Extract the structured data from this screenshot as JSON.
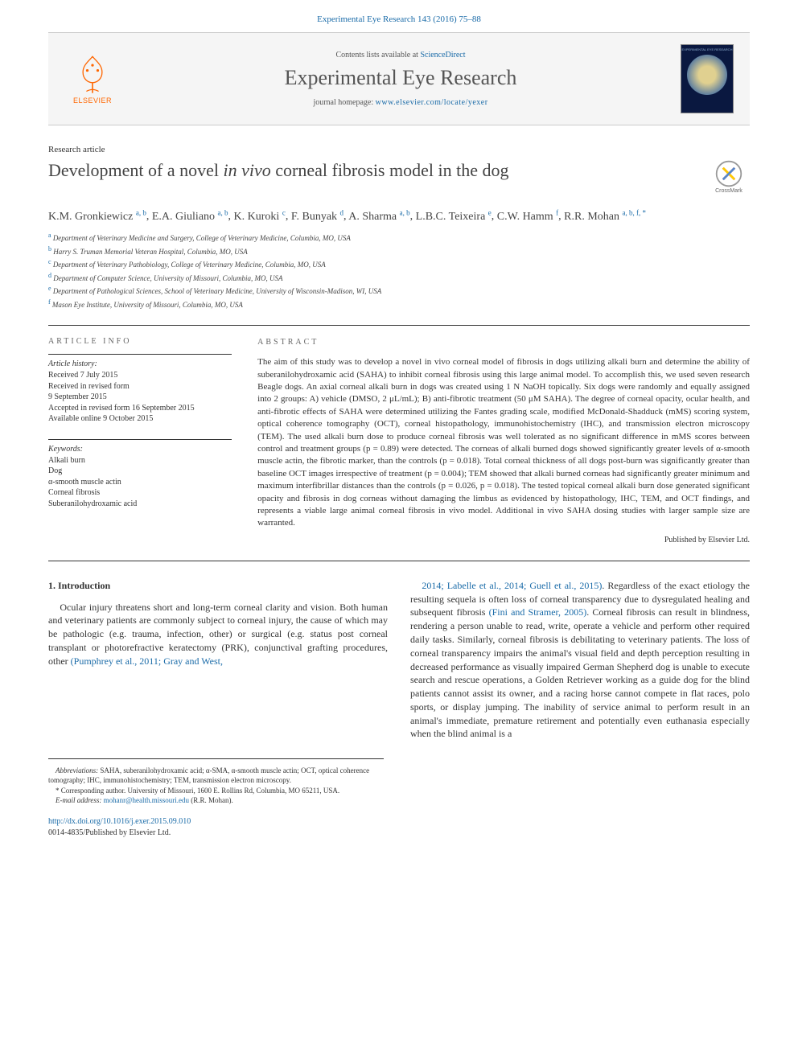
{
  "journal_ref": "Experimental Eye Research 143 (2016) 75–88",
  "masthead": {
    "elsevier": "ELSEVIER",
    "contents_prefix": "Contents lists available at ",
    "contents_link": "ScienceDirect",
    "journal_name": "Experimental Eye Research",
    "homepage_prefix": "journal homepage: ",
    "homepage_link": "www.elsevier.com/locate/yexer",
    "cover_text": "EXPERIMENTAL EYE RESEARCH"
  },
  "article_type": "Research article",
  "title_pre": "Development of a novel ",
  "title_em": "in vivo",
  "title_post": " corneal fibrosis model in the dog",
  "crossmark": "CrossMark",
  "authors": [
    {
      "name": "K.M. Gronkiewicz",
      "aff": "a, b"
    },
    {
      "name": "E.A. Giuliano",
      "aff": "a, b"
    },
    {
      "name": "K. Kuroki",
      "aff": "c"
    },
    {
      "name": "F. Bunyak",
      "aff": "d"
    },
    {
      "name": "A. Sharma",
      "aff": "a, b"
    },
    {
      "name": "L.B.C. Teixeira",
      "aff": "e"
    },
    {
      "name": "C.W. Hamm",
      "aff": "f"
    },
    {
      "name": "R.R. Mohan",
      "aff": "a, b, f, *"
    }
  ],
  "affiliations": [
    {
      "sup": "a",
      "text": "Department of Veterinary Medicine and Surgery, College of Veterinary Medicine, Columbia, MO, USA"
    },
    {
      "sup": "b",
      "text": "Harry S. Truman Memorial Veteran Hospital, Columbia, MO, USA"
    },
    {
      "sup": "c",
      "text": "Department of Veterinary Pathobiology, College of Veterinary Medicine, Columbia, MO, USA"
    },
    {
      "sup": "d",
      "text": "Department of Computer Science, University of Missouri, Columbia, MO, USA"
    },
    {
      "sup": "e",
      "text": "Department of Pathological Sciences, School of Veterinary Medicine, University of Wisconsin-Madison, WI, USA"
    },
    {
      "sup": "f",
      "text": "Mason Eye Institute, University of Missouri, Columbia, MO, USA"
    }
  ],
  "article_info": {
    "head": "ARTICLE INFO",
    "history_label": "Article history:",
    "history": [
      "Received 7 July 2015",
      "Received in revised form",
      "9 September 2015",
      "Accepted in revised form 16 September 2015",
      "Available online 9 October 2015"
    ],
    "keywords_label": "Keywords:",
    "keywords": [
      "Alkali burn",
      "Dog",
      "α-smooth muscle actin",
      "Corneal fibrosis",
      "Suberanilohydroxamic acid"
    ]
  },
  "abstract": {
    "head": "ABSTRACT",
    "text": "The aim of this study was to develop a novel in vivo corneal model of fibrosis in dogs utilizing alkali burn and determine the ability of suberanilohydroxamic acid (SAHA) to inhibit corneal fibrosis using this large animal model. To accomplish this, we used seven research Beagle dogs. An axial corneal alkali burn in dogs was created using 1 N NaOH topically. Six dogs were randomly and equally assigned into 2 groups: A) vehicle (DMSO, 2 μL/mL); B) anti-fibrotic treatment (50 μM SAHA). The degree of corneal opacity, ocular health, and anti-fibrotic effects of SAHA were determined utilizing the Fantes grading scale, modified McDonald-Shadduck (mMS) scoring system, optical coherence tomography (OCT), corneal histopathology, immunohistochemistry (IHC), and transmission electron microscopy (TEM). The used alkali burn dose to produce corneal fibrosis was well tolerated as no significant difference in mMS scores between control and treatment groups (p = 0.89) were detected. The corneas of alkali burned dogs showed significantly greater levels of α-smooth muscle actin, the fibrotic marker, than the controls (p = 0.018). Total corneal thickness of all dogs post-burn was significantly greater than baseline OCT images irrespective of treatment (p = 0.004); TEM showed that alkali burned corneas had significantly greater minimum and maximum interfibrillar distances than the controls (p = 0.026, p = 0.018). The tested topical corneal alkali burn dose generated significant opacity and fibrosis in dog corneas without damaging the limbus as evidenced by histopathology, IHC, TEM, and OCT findings, and represents a viable large animal corneal fibrosis in vivo model. Additional in vivo SAHA dosing studies with larger sample size are warranted.",
    "footer": "Published by Elsevier Ltd."
  },
  "body": {
    "heading": "1. Introduction",
    "left": "Ocular injury threatens short and long-term corneal clarity and vision. Both human and veterinary patients are commonly subject to corneal injury, the cause of which may be pathologic (e.g. trauma, infection, other) or surgical (e.g. status post corneal transplant or photorefractive keratectomy (PRK), conjunctival grafting procedures, other ",
    "left_cite": "(Pumphrey et al., 2011; Gray and West,",
    "right_cite": "2014; Labelle et al., 2014; Guell et al., 2015)",
    "right": ". Regardless of the exact etiology the resulting sequela is often loss of corneal transparency due to dysregulated healing and subsequent fibrosis ",
    "right_cite2": "(Fini and Stramer, 2005)",
    "right2": ". Corneal fibrosis can result in blindness, rendering a person unable to read, write, operate a vehicle and perform other required daily tasks. Similarly, corneal fibrosis is debilitating to veterinary patients. The loss of corneal transparency impairs the animal's visual field and depth perception resulting in decreased performance as visually impaired German Shepherd dog is unable to execute search and rescue operations, a Golden Retriever working as a guide dog for the blind patients cannot assist its owner, and a racing horse cannot compete in flat races, polo sports, or display jumping. The inability of service animal to perform result in an animal's immediate, premature retirement and potentially even euthanasia especially when the blind animal is a"
  },
  "footnotes": {
    "abbr_label": "Abbreviations:",
    "abbr": " SAHA, suberanilohydroxamic acid; α-SMA, α-smooth muscle actin; OCT, optical coherence tomography; IHC, immunohistochemistry; TEM, transmission electron microscopy.",
    "corr_label": "* Corresponding author.",
    "corr": " University of Missouri, 1600 E. Rollins Rd, Columbia, MO 65211, USA.",
    "email_label": "E-mail address:",
    "email": "mohanr@health.missouri.edu",
    "email_name": " (R.R. Mohan)."
  },
  "footer": {
    "doi": "http://dx.doi.org/10.1016/j.exer.2015.09.010",
    "issn": "0014-4835/Published by Elsevier Ltd."
  },
  "colors": {
    "link": "#1a6ba8",
    "elsevier_orange": "#ff6600",
    "text": "#333333",
    "border": "#333333"
  }
}
